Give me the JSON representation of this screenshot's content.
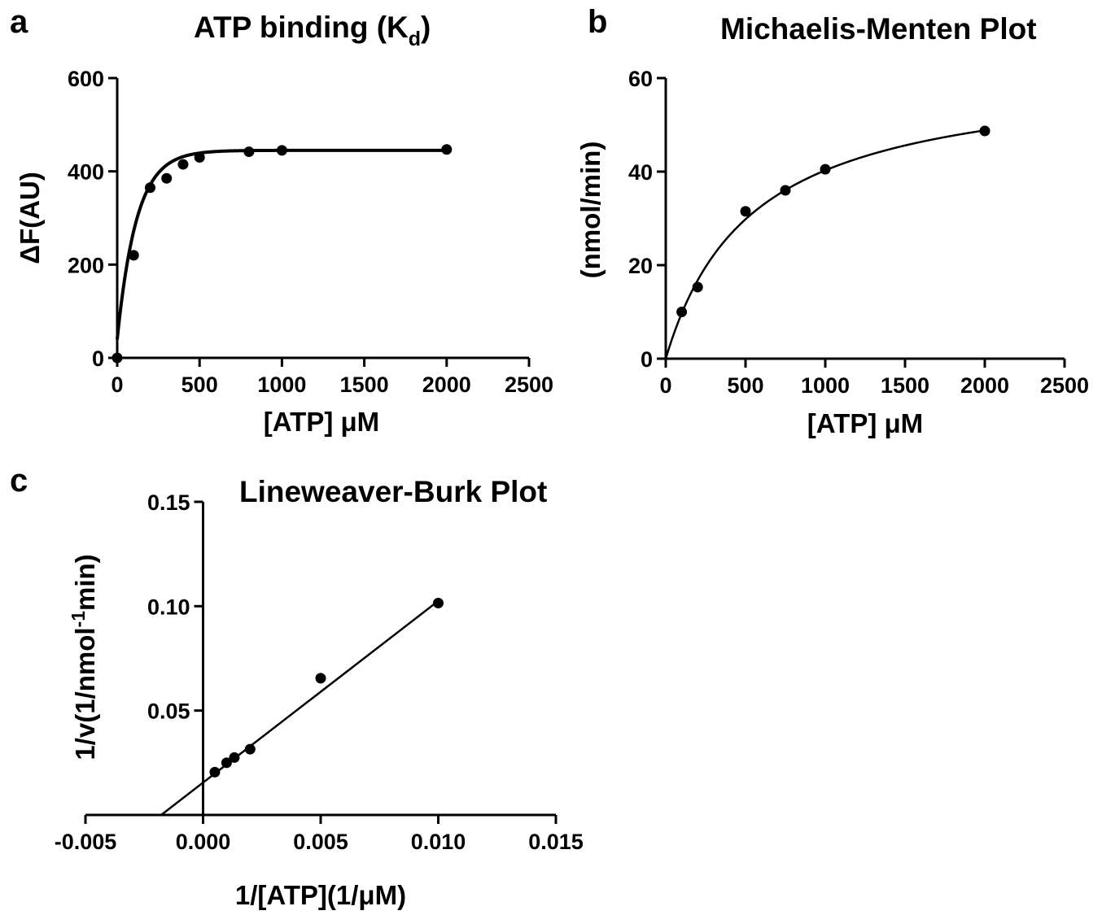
{
  "chart_data": [
    {
      "id": "a",
      "panel_letter": "a",
      "type": "scatter",
      "title": "ATP binding (K",
      "title_subscript": "d",
      "title_close": ")",
      "xlabel": "[ATP] μM",
      "ylabel": "ΔF(AU)",
      "xlim": [
        0,
        2500
      ],
      "ylim": [
        0,
        600
      ],
      "x_ticks": [
        0,
        500,
        1000,
        1500,
        2000,
        2500
      ],
      "y_ticks": [
        0,
        200,
        400,
        600
      ],
      "x_tick_labels": [
        "0",
        "500",
        "1000",
        "1500",
        "2000",
        "2500"
      ],
      "y_tick_labels": [
        "0",
        "200",
        "400",
        "600"
      ],
      "series": [
        {
          "x": [
            0,
            100,
            200,
            300,
            400,
            500,
            800,
            1000,
            2000
          ],
          "y": [
            0,
            220,
            365,
            385,
            415,
            430,
            442,
            445,
            447
          ]
        }
      ],
      "fit": {
        "model": "exponential-association",
        "ymax": 445,
        "k": 0.0085,
        "y0": 40
      }
    },
    {
      "id": "b",
      "panel_letter": "b",
      "type": "scatter",
      "title": "Michaelis-Menten Plot",
      "xlabel": "[ATP] μM",
      "ylabel": "(nmol/min)",
      "xlim": [
        0,
        2500
      ],
      "ylim": [
        0,
        60
      ],
      "x_ticks": [
        0,
        500,
        1000,
        1500,
        2000,
        2500
      ],
      "y_ticks": [
        0,
        20,
        40,
        60
      ],
      "x_tick_labels": [
        "0",
        "500",
        "1000",
        "1500",
        "2000",
        "2500"
      ],
      "y_tick_labels": [
        "0",
        "20",
        "40",
        "60"
      ],
      "series": [
        {
          "x": [
            100,
            200,
            500,
            750,
            1000,
            2000
          ],
          "y": [
            10,
            15.3,
            31.5,
            36,
            40.5,
            48.7
          ]
        }
      ],
      "fit": {
        "model": "michaelis-menten",
        "vmax": 62,
        "km": 540
      }
    },
    {
      "id": "c",
      "panel_letter": "c",
      "type": "scatter",
      "title": "Lineweaver-Burk Plot",
      "xlabel": "1/[ATP](1/μM)",
      "ylabel": "1/v(1/nmol",
      "ylabel_superscript": "-1",
      "ylabel_close": "min)",
      "xlim": [
        -0.005,
        0.015
      ],
      "ylim": [
        0,
        0.15
      ],
      "x_ticks": [
        -0.005,
        0,
        0.005,
        0.01,
        0.015
      ],
      "y_ticks": [
        0.05,
        0.1,
        0.15
      ],
      "x_tick_labels": [
        "-0.005",
        "0.000",
        "0.005",
        "0.010",
        "0.015"
      ],
      "y_tick_labels": [
        "0.05",
        "0.10",
        "0.15"
      ],
      "series": [
        {
          "x": [
            0.0005,
            0.001,
            0.00133,
            0.002,
            0.005,
            0.01
          ],
          "y": [
            0.0205,
            0.025,
            0.0275,
            0.0315,
            0.0655,
            0.1015
          ]
        }
      ],
      "fit": {
        "model": "linear",
        "x_range": [
          -0.00178,
          0.01
        ],
        "slope": 8.7,
        "intercept": 0.0155
      }
    }
  ]
}
